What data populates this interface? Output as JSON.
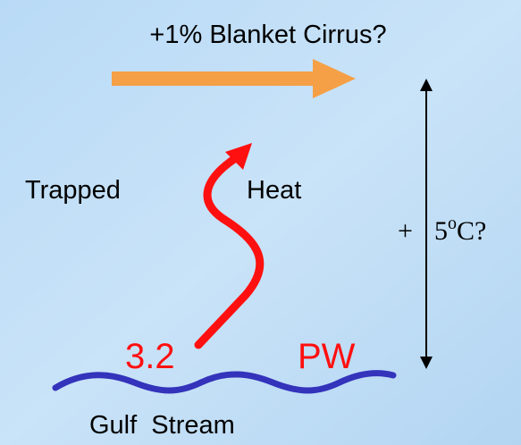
{
  "title": "+1% Blanket Cirrus?",
  "labels": {
    "trapped": "Trapped",
    "heat": "Heat",
    "amount": "3.2",
    "unit": "PW",
    "source": "Gulf  Stream"
  },
  "temperature": {
    "sign": "+",
    "value": "5",
    "degree": "o",
    "unit": "C?"
  }
}
